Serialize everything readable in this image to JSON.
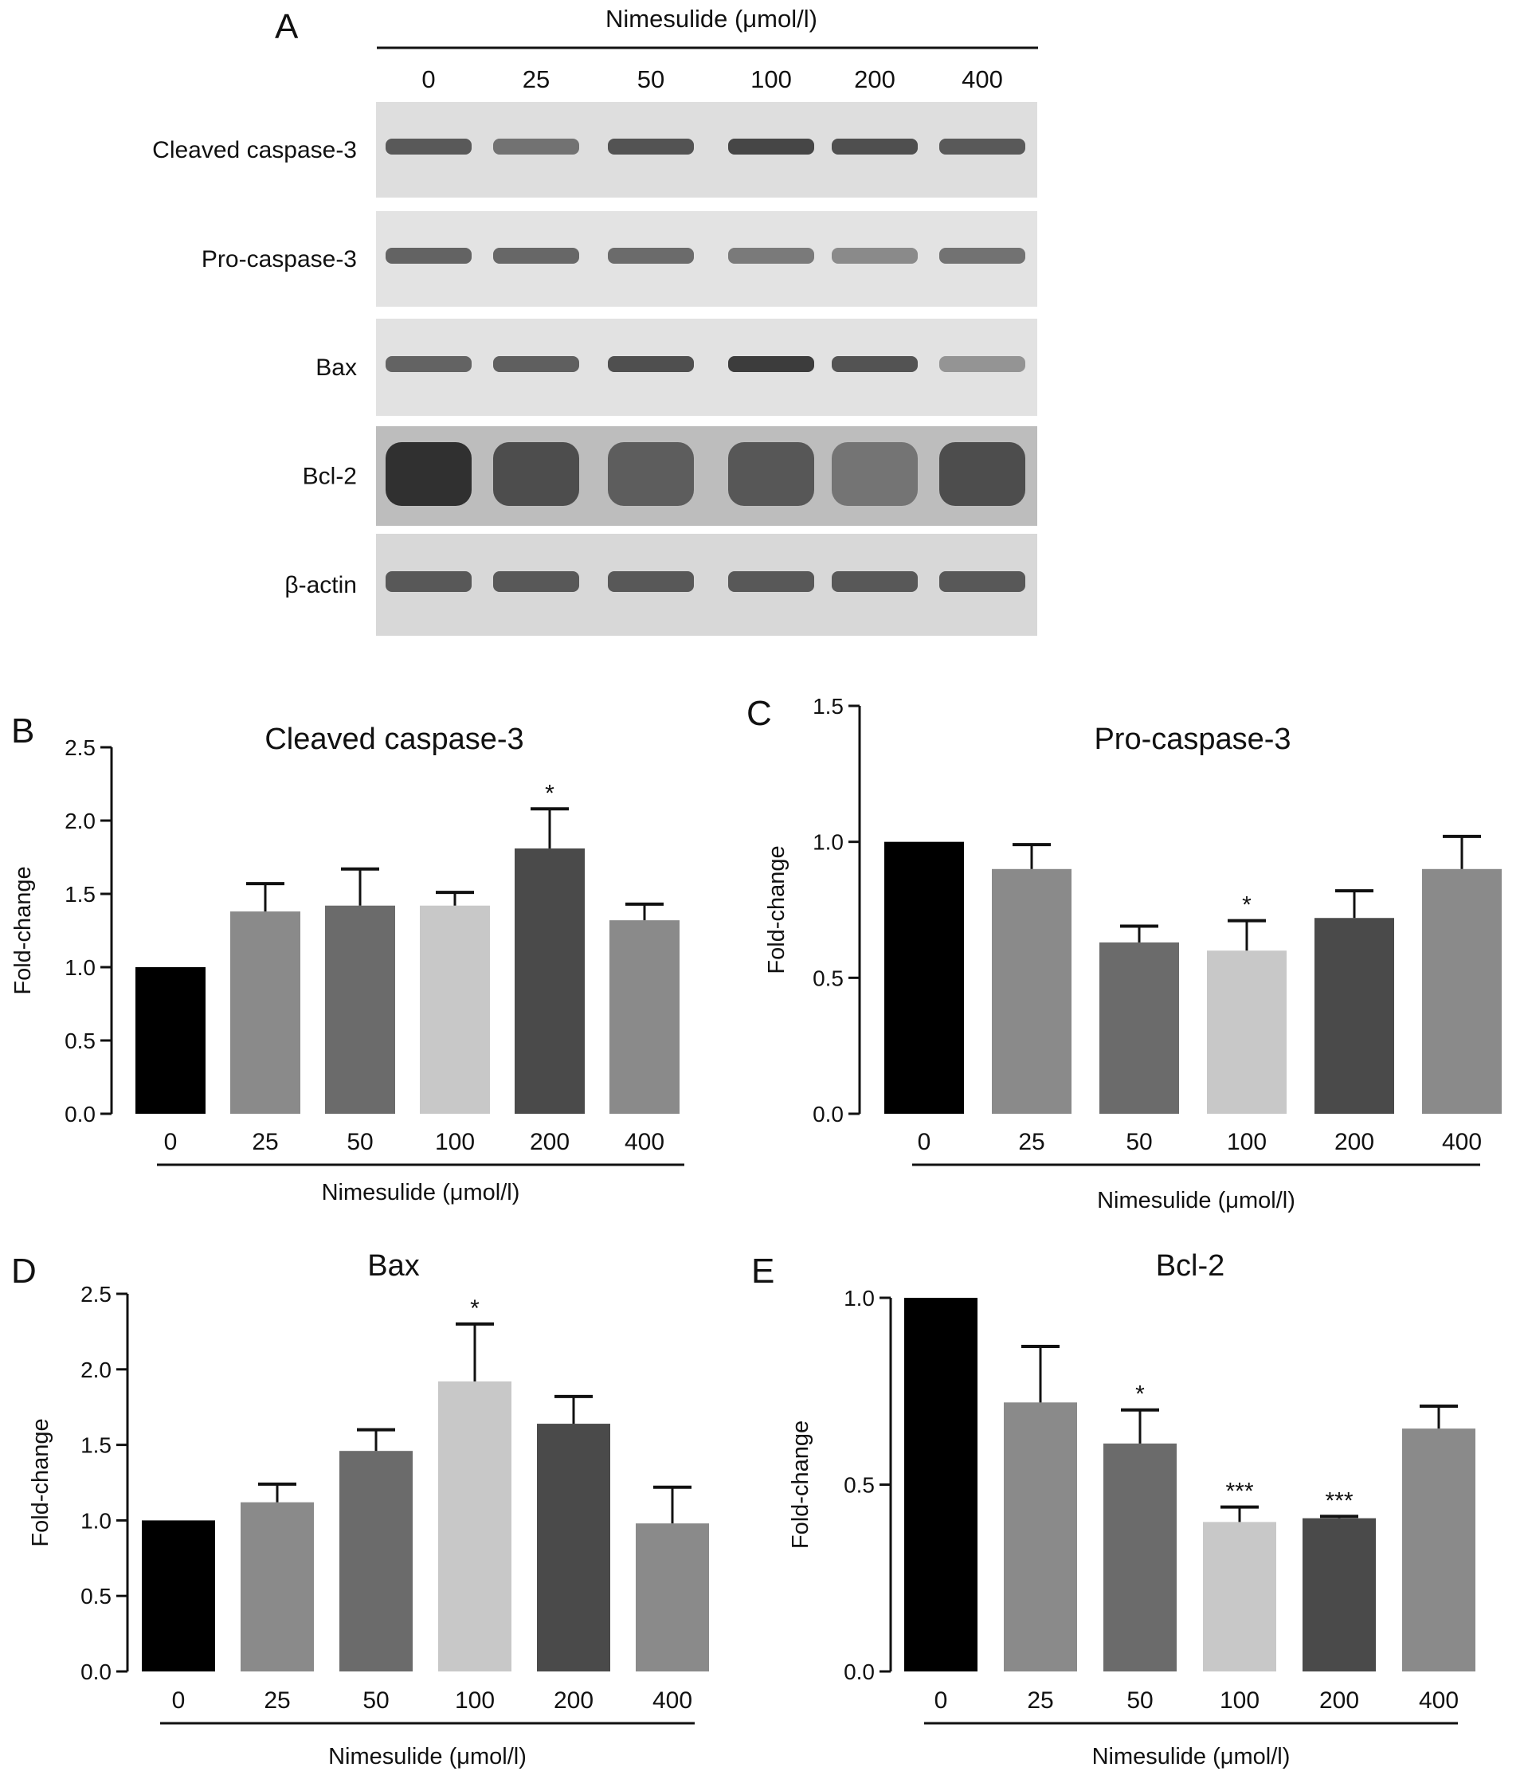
{
  "figure": {
    "panel_a": {
      "letter": "A",
      "header": "Nimesulide (μmol/l)",
      "lanes": [
        "0",
        "25",
        "50",
        "100",
        "200",
        "400"
      ],
      "rows": [
        {
          "label": "Cleaved caspase-3",
          "intensities": [
            0.75,
            0.62,
            0.78,
            0.85,
            0.8,
            0.75
          ],
          "background": "#dedede"
        },
        {
          "label": "Pro-caspase-3",
          "intensities": [
            0.7,
            0.68,
            0.66,
            0.58,
            0.5,
            0.62
          ],
          "background": "#e3e3e3"
        },
        {
          "label": "Bax",
          "intensities": [
            0.7,
            0.72,
            0.8,
            0.9,
            0.78,
            0.45
          ],
          "background": "#e2e2e2"
        },
        {
          "label": "Bcl-2",
          "intensities": [
            0.95,
            0.8,
            0.72,
            0.75,
            0.6,
            0.8
          ],
          "background": "#bdbdbd"
        },
        {
          "label": "β-actin",
          "intensities": [
            0.75,
            0.75,
            0.75,
            0.75,
            0.75,
            0.75
          ],
          "background": "#d8d8d8"
        }
      ]
    }
  },
  "chart_data": [
    {
      "type": "bar",
      "panel": "B",
      "title": "Cleaved caspase-3",
      "ylabel": "Fold-change",
      "xlabel": "Nimesulide (μmol/l)",
      "categories": [
        "0",
        "25",
        "50",
        "100",
        "200",
        "400"
      ],
      "values": [
        1.0,
        1.38,
        1.42,
        1.42,
        1.81,
        1.32
      ],
      "errors": [
        0.0,
        0.19,
        0.25,
        0.09,
        0.27,
        0.11
      ],
      "significance": [
        "",
        "",
        "",
        "",
        "*",
        ""
      ],
      "ylim": [
        0,
        2.5
      ],
      "yticks": [
        "0.0",
        "0.5",
        "1.0",
        "1.5",
        "2.0",
        "2.5"
      ],
      "colors": [
        "#000000",
        "#8a8a8a",
        "#6b6b6b",
        "#c8c8c8",
        "#4a4a4a",
        "#8a8a8a"
      ]
    },
    {
      "type": "bar",
      "panel": "C",
      "title": "Pro-caspase-3",
      "ylabel": "Fold-change",
      "xlabel": "Nimesulide (μmol/l)",
      "categories": [
        "0",
        "25",
        "50",
        "100",
        "200",
        "400"
      ],
      "values": [
        1.0,
        0.9,
        0.63,
        0.6,
        0.72,
        0.9
      ],
      "errors": [
        0.0,
        0.09,
        0.06,
        0.11,
        0.1,
        0.12
      ],
      "significance": [
        "",
        "",
        "",
        "*",
        "",
        ""
      ],
      "ylim": [
        0,
        1.5
      ],
      "yticks": [
        "0.0",
        "0.5",
        "1.0",
        "1.5"
      ],
      "colors": [
        "#000000",
        "#8a8a8a",
        "#6b6b6b",
        "#c8c8c8",
        "#4a4a4a",
        "#8a8a8a"
      ]
    },
    {
      "type": "bar",
      "panel": "D",
      "title": "Bax",
      "ylabel": "Fold-change",
      "xlabel": "Nimesulide (μmol/l)",
      "categories": [
        "0",
        "25",
        "50",
        "100",
        "200",
        "400"
      ],
      "values": [
        1.0,
        1.12,
        1.46,
        1.92,
        1.64,
        0.98
      ],
      "errors": [
        0.0,
        0.12,
        0.14,
        0.38,
        0.18,
        0.24
      ],
      "significance": [
        "",
        "",
        "",
        "*",
        "",
        ""
      ],
      "ylim": [
        0,
        2.5
      ],
      "yticks": [
        "0.0",
        "0.5",
        "1.0",
        "1.5",
        "2.0",
        "2.5"
      ],
      "colors": [
        "#000000",
        "#8a8a8a",
        "#6b6b6b",
        "#c8c8c8",
        "#4a4a4a",
        "#8a8a8a"
      ]
    },
    {
      "type": "bar",
      "panel": "E",
      "title": "Bcl-2",
      "ylabel": "Fold-change",
      "xlabel": "Nimesulide (μmol/l)",
      "categories": [
        "0",
        "25",
        "50",
        "100",
        "200",
        "400"
      ],
      "values": [
        1.0,
        0.72,
        0.61,
        0.4,
        0.41,
        0.65
      ],
      "errors": [
        0.0,
        0.15,
        0.09,
        0.04,
        0.005,
        0.06
      ],
      "significance": [
        "",
        "",
        "*",
        "***",
        "***",
        ""
      ],
      "ylim": [
        0,
        1.0
      ],
      "yticks": [
        "0.0",
        "0.5",
        "1.0"
      ],
      "colors": [
        "#000000",
        "#8a8a8a",
        "#6b6b6b",
        "#c8c8c8",
        "#4a4a4a",
        "#8a8a8a"
      ]
    }
  ]
}
